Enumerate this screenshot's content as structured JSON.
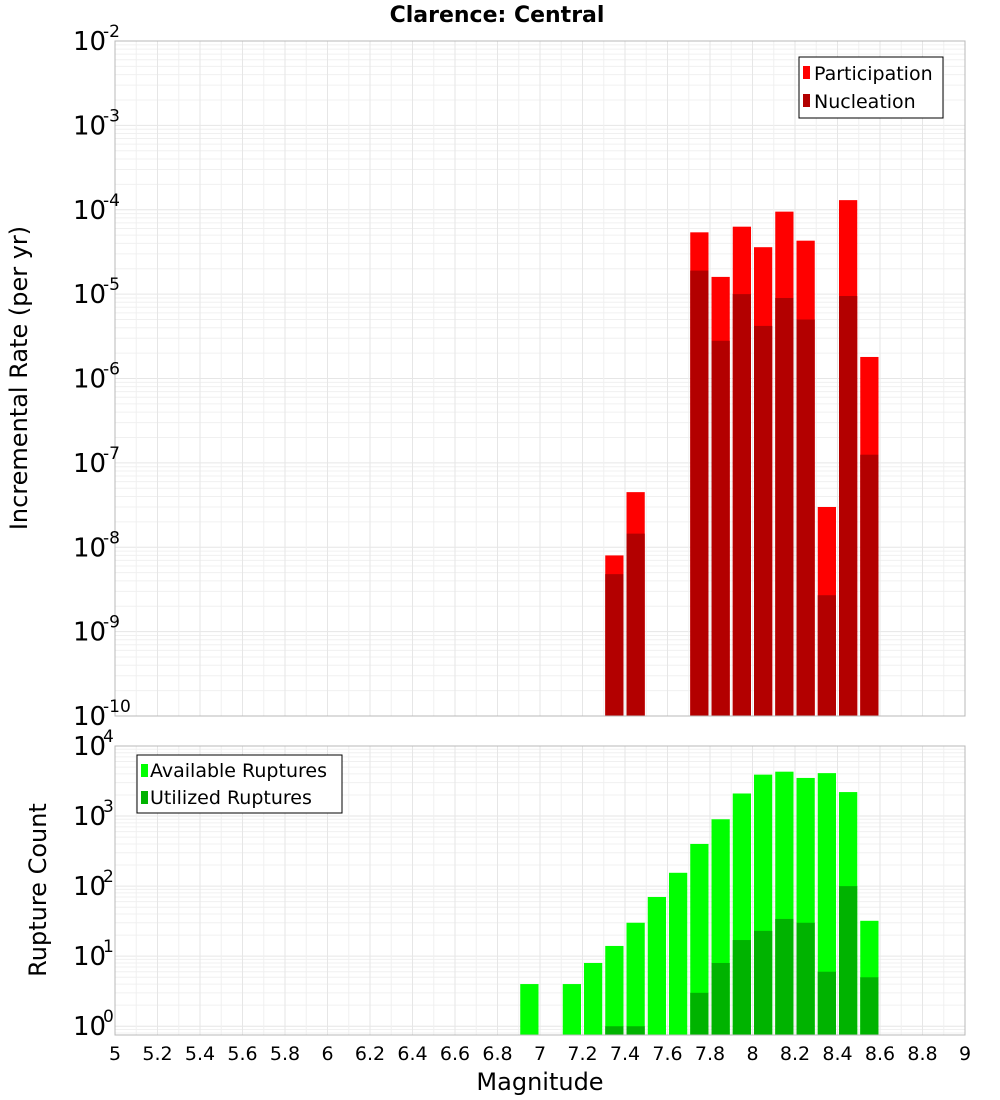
{
  "chart_data": [
    {
      "type": "bar",
      "title": "Clarence: Central",
      "xlabel": "",
      "ylabel": "Incremental Rate (per yr)",
      "yscale": "log",
      "ylim": [
        1e-10,
        0.01
      ],
      "xlim": [
        5,
        9
      ],
      "grid": true,
      "legend_position": "top-right",
      "colors": {
        "Participation": "#ff0000",
        "Nucleation": "#b30000"
      },
      "x": [
        7.35,
        7.45,
        7.75,
        7.85,
        7.95,
        8.05,
        8.15,
        8.25,
        8.35,
        8.45,
        8.55
      ],
      "series": [
        {
          "name": "Participation",
          "values": [
            8e-09,
            4.5e-08,
            5.4e-05,
            1.6e-05,
            6.3e-05,
            3.6e-05,
            9.5e-05,
            4.3e-05,
            3e-08,
            0.00013,
            1.8e-06
          ]
        },
        {
          "name": "Nucleation",
          "values": [
            4.8e-09,
            1.45e-08,
            1.9e-05,
            2.8e-06,
            1e-05,
            4.2e-06,
            9e-06,
            5e-06,
            2.7e-09,
            9.5e-06,
            1.25e-07
          ]
        }
      ]
    },
    {
      "type": "bar",
      "title": "",
      "xlabel": "Magnitude",
      "ylabel": "Rupture Count",
      "yscale": "log",
      "ylim": [
        0.75,
        10000
      ],
      "xlim": [
        5,
        9
      ],
      "grid": true,
      "legend_position": "top-left",
      "colors": {
        "Available Ruptures": "#00ff00",
        "Utilized Ruptures": "#00b300"
      },
      "x": [
        6.95,
        7.15,
        7.25,
        7.35,
        7.45,
        7.55,
        7.65,
        7.75,
        7.85,
        7.95,
        8.05,
        8.15,
        8.25,
        8.35,
        8.45,
        8.55
      ],
      "series": [
        {
          "name": "Available Ruptures",
          "values": [
            4,
            4,
            8,
            14,
            30,
            70,
            155,
            400,
            900,
            2100,
            3900,
            4300,
            3500,
            4100,
            2200,
            32
          ]
        },
        {
          "name": "Utilized Ruptures",
          "values": [
            null,
            null,
            null,
            1,
            1,
            null,
            null,
            3,
            8,
            17,
            23,
            34,
            30,
            6,
            100,
            5
          ]
        }
      ]
    }
  ],
  "axes": {
    "x_ticks": [
      "5",
      "5.2",
      "5.4",
      "5.6",
      "5.8",
      "6",
      "6.2",
      "6.4",
      "6.6",
      "6.8",
      "7",
      "7.2",
      "7.4",
      "7.6",
      "7.8",
      "8",
      "8.2",
      "8.4",
      "8.6",
      "8.8",
      "9"
    ],
    "top_y_ticks": [
      {
        "base": "10",
        "exp": "-2"
      },
      {
        "base": "10",
        "exp": "-3"
      },
      {
        "base": "10",
        "exp": "-4"
      },
      {
        "base": "10",
        "exp": "-5"
      },
      {
        "base": "10",
        "exp": "-6"
      },
      {
        "base": "10",
        "exp": "-7"
      },
      {
        "base": "10",
        "exp": "-8"
      },
      {
        "base": "10",
        "exp": "-9"
      },
      {
        "base": "10",
        "exp": "-10"
      }
    ],
    "bottom_y_ticks": [
      {
        "base": "10",
        "exp": "4"
      },
      {
        "base": "10",
        "exp": "3"
      },
      {
        "base": "10",
        "exp": "2"
      },
      {
        "base": "10",
        "exp": "1"
      },
      {
        "base": "10",
        "exp": "0"
      }
    ]
  }
}
